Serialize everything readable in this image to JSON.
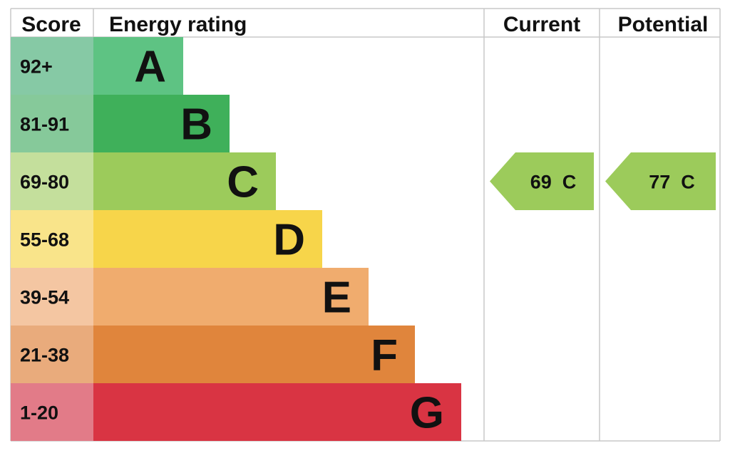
{
  "chart_data": {
    "type": "bar",
    "title": "",
    "headers": {
      "score": "Score",
      "rating": "Energy rating",
      "current": "Current",
      "potential": "Potential"
    },
    "bands": [
      {
        "score": "92+",
        "letter": "A",
        "color": "#5ec383",
        "score_bg": "#86c9a5"
      },
      {
        "score": "81-91",
        "letter": "B",
        "color": "#3fb05a",
        "score_bg": "#86c99a"
      },
      {
        "score": "69-80",
        "letter": "C",
        "color": "#9ccb5b",
        "score_bg": "#c4df9c"
      },
      {
        "score": "55-68",
        "letter": "D",
        "color": "#f7d54a",
        "score_bg": "#f9e48a"
      },
      {
        "score": "39-54",
        "letter": "E",
        "color": "#f0ac6e",
        "score_bg": "#f4c6a2"
      },
      {
        "score": "21-38",
        "letter": "F",
        "color": "#e0853c",
        "score_bg": "#e9ab7c"
      },
      {
        "score": "1-20",
        "letter": "G",
        "color": "#d93443",
        "score_bg": "#e27b88"
      }
    ],
    "current": {
      "value": 69,
      "band": "C",
      "label": "69  C",
      "color": "#9ccb5b"
    },
    "potential": {
      "value": 77,
      "band": "C",
      "label": "77  C",
      "color": "#9ccb5b"
    }
  }
}
